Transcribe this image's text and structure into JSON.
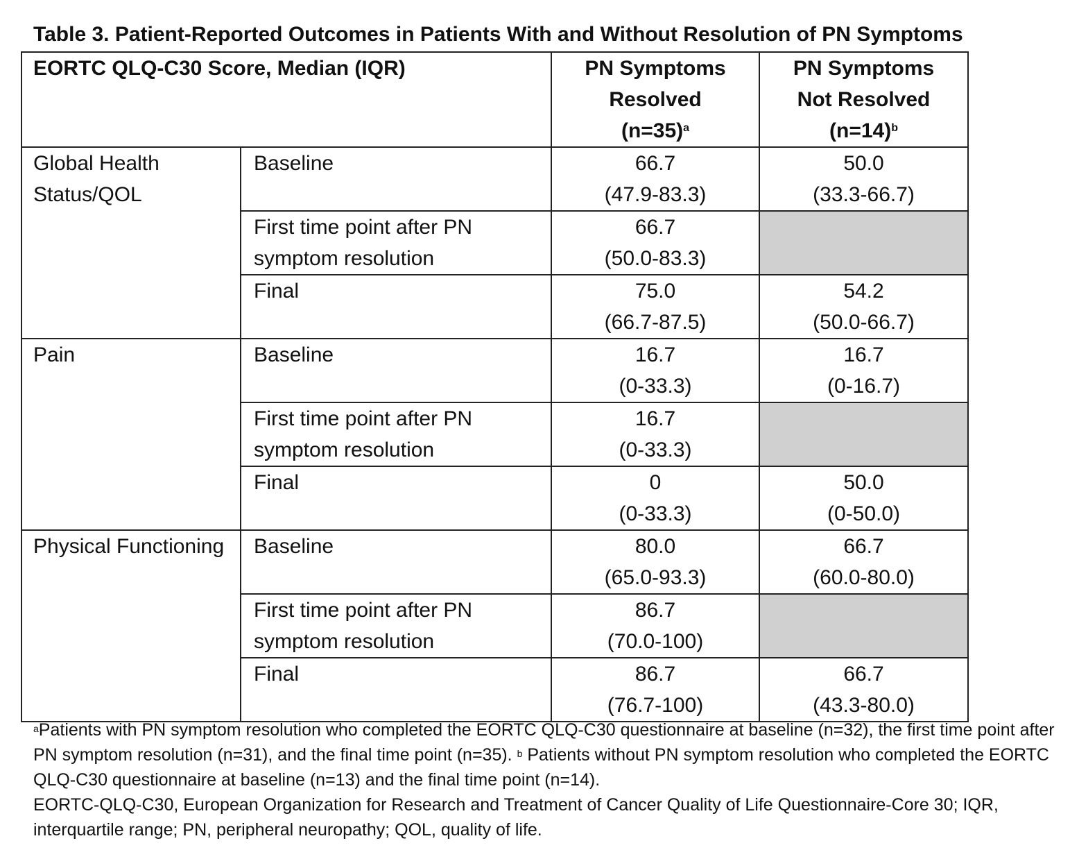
{
  "title": "Table 3. Patient-Reported Outcomes in Patients With and Without Resolution of PN Symptoms",
  "header": {
    "row_label": "EORTC QLQ-C30 Score, Median (IQR)",
    "col1": {
      "line1": "PN Symptoms",
      "line2": "Resolved",
      "line3": "(n=35)",
      "sup": "a"
    },
    "col2": {
      "line1": "PN Symptoms",
      "line2": "Not Resolved",
      "line3": "(n=14)",
      "sup": "b"
    }
  },
  "groups": [
    {
      "name": "Global Health Status/QOL",
      "rows": [
        {
          "timepoint": "Baseline",
          "res_median": "66.7",
          "res_iqr": "(47.9-83.3)",
          "nres_median": "50.0",
          "nres_iqr": "(33.3-66.7)"
        },
        {
          "timepoint": "First time point after PN symptom resolution",
          "res_median": "66.7",
          "res_iqr": "(50.0-83.3)",
          "nres_median": "",
          "nres_iqr": ""
        },
        {
          "timepoint": "Final",
          "res_median": "75.0",
          "res_iqr": "(66.7-87.5)",
          "nres_median": "54.2",
          "nres_iqr": "(50.0-66.7)"
        }
      ]
    },
    {
      "name": "Pain",
      "rows": [
        {
          "timepoint": "Baseline",
          "res_median": "16.7",
          "res_iqr": "(0-33.3)",
          "nres_median": "16.7",
          "nres_iqr": "(0-16.7)"
        },
        {
          "timepoint": "First time point after PN symptom resolution",
          "res_median": "16.7",
          "res_iqr": "(0-33.3)",
          "nres_median": "",
          "nres_iqr": ""
        },
        {
          "timepoint": "Final",
          "res_median": "0",
          "res_iqr": "(0-33.3)",
          "nres_median": "50.0",
          "nres_iqr": "(0-50.0)"
        }
      ]
    },
    {
      "name": "Physical Functioning",
      "rows": [
        {
          "timepoint": "Baseline",
          "res_median": "80.0",
          "res_iqr": "(65.0-93.3)",
          "nres_median": "66.7",
          "nres_iqr": "(60.0-80.0)"
        },
        {
          "timepoint": "First time point after PN symptom resolution",
          "res_median": "86.7",
          "res_iqr": "(70.0-100)",
          "nres_median": "",
          "nres_iqr": ""
        },
        {
          "timepoint": "Final",
          "res_median": "86.7",
          "res_iqr": "(76.7-100)",
          "nres_median": "66.7",
          "nres_iqr": "(43.3-80.0)"
        }
      ]
    }
  ],
  "footnotes": {
    "a_mark": "a",
    "a_text": "Patients with PN symptom resolution who completed the EORTC QLQ-C30 questionnaire at baseline (n=32), the first time point after PN symptom resolution (n=31), and the final time point (n=35).",
    "b_mark": "b",
    "b_text": "Patients without PN symptom resolution who completed the EORTC QLQ-C30 questionnaire at baseline (n=13) and the final time point (n=14).",
    "abbrev": "EORTC-QLQ-C30, European Organization for Research and Treatment of Cancer Quality of Life Questionnaire-Core 30; IQR, interquartile range; PN, peripheral neuropathy; QOL, quality of life."
  },
  "colors": {
    "shaded_cell": "#d0d0d0",
    "border": "#222222"
  }
}
